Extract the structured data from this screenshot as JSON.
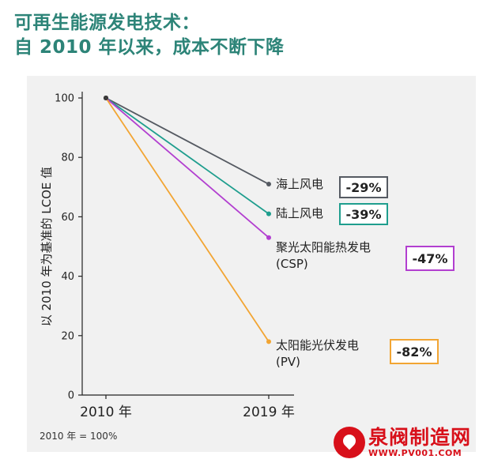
{
  "title": {
    "line1": "可再生能源发电技术：",
    "line2": "自  2010  年以来，成本不断下降"
  },
  "chart_data": {
    "type": "line",
    "title": "可再生能源发电技术：自 2010 年以来，成本不断下降",
    "xlabel": "",
    "ylabel": "以 2010 年为基准的 LCOE 值",
    "categories": [
      "2010 年",
      "2019 年"
    ],
    "ylim": [
      0,
      100
    ],
    "yticks": [
      0,
      20,
      40,
      60,
      80,
      100
    ],
    "grid": false,
    "note": "2010 年 = 100%",
    "series": [
      {
        "name": "海上风电",
        "name_line2": "",
        "values": [
          100,
          71
        ],
        "change": "-29%",
        "color": "#555a62"
      },
      {
        "name": "陆上风电",
        "name_line2": "",
        "values": [
          100,
          61
        ],
        "change": "-39%",
        "color": "#1f9e8e"
      },
      {
        "name": "聚光太阳能热发电",
        "name_line2": "(CSP)",
        "values": [
          100,
          53
        ],
        "change": "-47%",
        "color": "#b23fd0"
      },
      {
        "name": "太阳能光伏发电",
        "name_line2": "(PV)",
        "values": [
          100,
          18
        ],
        "change": "-82%",
        "color": "#f2a533"
      }
    ]
  },
  "watermark": {
    "name": "泉阀制造网",
    "url": "WWW.PV001.COM"
  }
}
